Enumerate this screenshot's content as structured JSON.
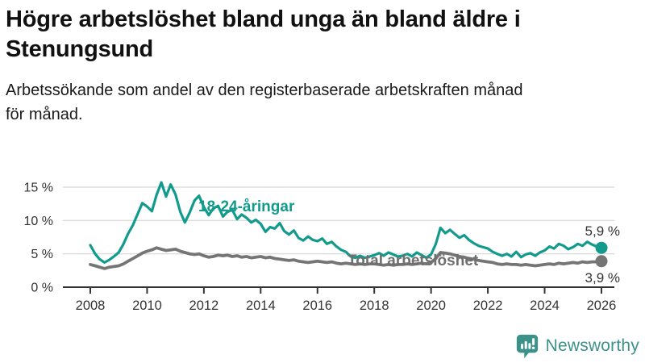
{
  "header": {
    "title_line1": "Högre arbetslöshet bland unga än bland äldre i",
    "title_line2": "Stenungsund",
    "subtitle_line1": "Arbetssökande som andel av den registerbaserade arbetskraften månad",
    "subtitle_line2": "för månad."
  },
  "annotations": {
    "youth_series_label": "18-24-åringar",
    "total_series_label": "Total arbetslöshet",
    "youth_end_label": "5,9 %",
    "total_end_label": "3,9 %"
  },
  "footer": {
    "brand": "Newsworthy",
    "logo_icon": "bar-chart-speech-bubble-icon"
  },
  "colors": {
    "youth": "#129a8d",
    "total": "#757575",
    "axis": "#333333",
    "tick_text": "#333333",
    "grid": "#dddddd",
    "brand": "#3d918b"
  },
  "chart_data": {
    "type": "line",
    "title": "Högre arbetslöshet bland unga än bland äldre i Stenungsund",
    "subtitle": "Arbetssökande som andel av den registerbaserade arbetskraften månad för månad.",
    "unit": "%",
    "grid": true,
    "xlim": [
      2007.0,
      2026.5
    ],
    "ylim": [
      0,
      16.5
    ],
    "x_tick_years": [
      2008,
      2010,
      2012,
      2014,
      2016,
      2018,
      2020,
      2022,
      2024,
      2026
    ],
    "x_ticks": [
      "2008",
      "2010",
      "2012",
      "2014",
      "2016",
      "2018",
      "2020",
      "2022",
      "2024",
      "2026"
    ],
    "y_ticks": [
      {
        "value": 0,
        "label": "0 %"
      },
      {
        "value": 5,
        "label": "5 %"
      },
      {
        "value": 10,
        "label": "10 %"
      },
      {
        "value": 15,
        "label": "15 %"
      }
    ],
    "series": [
      {
        "name": "Total arbetslöshet",
        "color_key": "total",
        "stroke_width": 3.8,
        "last_value_label": "3,9 %",
        "points": [
          [
            2008.0,
            3.4
          ],
          [
            2008.17,
            3.2
          ],
          [
            2008.33,
            3.0
          ],
          [
            2008.5,
            2.8
          ],
          [
            2008.67,
            3.0
          ],
          [
            2008.83,
            3.1
          ],
          [
            2009.0,
            3.2
          ],
          [
            2009.17,
            3.5
          ],
          [
            2009.33,
            3.9
          ],
          [
            2009.5,
            4.3
          ],
          [
            2009.67,
            4.7
          ],
          [
            2009.83,
            5.1
          ],
          [
            2010.0,
            5.4
          ],
          [
            2010.17,
            5.6
          ],
          [
            2010.33,
            5.9
          ],
          [
            2010.5,
            5.7
          ],
          [
            2010.67,
            5.5
          ],
          [
            2010.83,
            5.6
          ],
          [
            2011.0,
            5.7
          ],
          [
            2011.17,
            5.4
          ],
          [
            2011.33,
            5.2
          ],
          [
            2011.5,
            5.0
          ],
          [
            2011.67,
            4.9
          ],
          [
            2011.83,
            5.0
          ],
          [
            2012.0,
            4.7
          ],
          [
            2012.17,
            4.5
          ],
          [
            2012.33,
            4.6
          ],
          [
            2012.5,
            4.8
          ],
          [
            2012.67,
            4.7
          ],
          [
            2012.83,
            4.8
          ],
          [
            2013.0,
            4.6
          ],
          [
            2013.17,
            4.7
          ],
          [
            2013.33,
            4.5
          ],
          [
            2013.5,
            4.6
          ],
          [
            2013.67,
            4.4
          ],
          [
            2013.83,
            4.5
          ],
          [
            2014.0,
            4.6
          ],
          [
            2014.17,
            4.4
          ],
          [
            2014.33,
            4.5
          ],
          [
            2014.5,
            4.3
          ],
          [
            2014.67,
            4.2
          ],
          [
            2014.83,
            4.1
          ],
          [
            2015.0,
            4.0
          ],
          [
            2015.17,
            4.1
          ],
          [
            2015.33,
            3.9
          ],
          [
            2015.5,
            3.8
          ],
          [
            2015.67,
            3.7
          ],
          [
            2015.83,
            3.8
          ],
          [
            2016.0,
            3.9
          ],
          [
            2016.17,
            3.8
          ],
          [
            2016.33,
            3.7
          ],
          [
            2016.5,
            3.8
          ],
          [
            2016.67,
            3.6
          ],
          [
            2016.83,
            3.5
          ],
          [
            2017.0,
            3.6
          ],
          [
            2017.17,
            3.5
          ],
          [
            2017.33,
            3.4
          ],
          [
            2017.5,
            3.5
          ],
          [
            2017.67,
            3.4
          ],
          [
            2017.83,
            3.5
          ],
          [
            2018.0,
            3.5
          ],
          [
            2018.17,
            3.4
          ],
          [
            2018.33,
            3.3
          ],
          [
            2018.5,
            3.4
          ],
          [
            2018.67,
            3.3
          ],
          [
            2018.83,
            3.4
          ],
          [
            2019.0,
            3.4
          ],
          [
            2019.17,
            3.5
          ],
          [
            2019.33,
            3.4
          ],
          [
            2019.5,
            3.5
          ],
          [
            2019.67,
            3.6
          ],
          [
            2019.83,
            3.5
          ],
          [
            2020.0,
            3.7
          ],
          [
            2020.17,
            4.3
          ],
          [
            2020.33,
            5.2
          ],
          [
            2020.5,
            5.1
          ],
          [
            2020.67,
            5.0
          ],
          [
            2020.83,
            4.8
          ],
          [
            2021.0,
            4.6
          ],
          [
            2021.17,
            4.5
          ],
          [
            2021.33,
            4.3
          ],
          [
            2021.5,
            4.2
          ],
          [
            2021.67,
            4.0
          ],
          [
            2021.83,
            3.9
          ],
          [
            2022.0,
            3.8
          ],
          [
            2022.17,
            3.7
          ],
          [
            2022.33,
            3.5
          ],
          [
            2022.5,
            3.4
          ],
          [
            2022.67,
            3.5
          ],
          [
            2022.83,
            3.4
          ],
          [
            2023.0,
            3.4
          ],
          [
            2023.17,
            3.3
          ],
          [
            2023.33,
            3.4
          ],
          [
            2023.5,
            3.3
          ],
          [
            2023.67,
            3.2
          ],
          [
            2023.83,
            3.3
          ],
          [
            2024.0,
            3.4
          ],
          [
            2024.17,
            3.5
          ],
          [
            2024.33,
            3.4
          ],
          [
            2024.5,
            3.6
          ],
          [
            2024.67,
            3.5
          ],
          [
            2024.83,
            3.6
          ],
          [
            2025.0,
            3.7
          ],
          [
            2025.17,
            3.6
          ],
          [
            2025.33,
            3.8
          ],
          [
            2025.5,
            3.7
          ],
          [
            2025.67,
            3.8
          ],
          [
            2025.83,
            3.8
          ],
          [
            2026.0,
            3.9
          ]
        ]
      },
      {
        "name": "18-24-åringar",
        "color_key": "youth",
        "stroke_width": 3.2,
        "last_value_label": "5,9 %",
        "points": [
          [
            2008.0,
            6.3
          ],
          [
            2008.17,
            5.0
          ],
          [
            2008.33,
            4.2
          ],
          [
            2008.5,
            3.7
          ],
          [
            2008.67,
            4.1
          ],
          [
            2008.83,
            4.6
          ],
          [
            2009.0,
            5.2
          ],
          [
            2009.17,
            6.5
          ],
          [
            2009.33,
            8.0
          ],
          [
            2009.5,
            9.3
          ],
          [
            2009.67,
            11.0
          ],
          [
            2009.83,
            12.6
          ],
          [
            2010.0,
            12.1
          ],
          [
            2010.17,
            11.4
          ],
          [
            2010.33,
            13.8
          ],
          [
            2010.5,
            15.7
          ],
          [
            2010.67,
            13.6
          ],
          [
            2010.83,
            15.4
          ],
          [
            2011.0,
            13.9
          ],
          [
            2011.17,
            11.3
          ],
          [
            2011.33,
            9.7
          ],
          [
            2011.5,
            11.2
          ],
          [
            2011.67,
            13.0
          ],
          [
            2011.83,
            13.7
          ],
          [
            2012.0,
            12.0
          ],
          [
            2012.17,
            10.8
          ],
          [
            2012.33,
            11.8
          ],
          [
            2012.5,
            12.2
          ],
          [
            2012.67,
            10.6
          ],
          [
            2012.83,
            11.3
          ],
          [
            2013.0,
            11.6
          ],
          [
            2013.17,
            10.2
          ],
          [
            2013.33,
            10.9
          ],
          [
            2013.5,
            10.4
          ],
          [
            2013.67,
            9.7
          ],
          [
            2013.83,
            10.1
          ],
          [
            2014.0,
            9.5
          ],
          [
            2014.17,
            8.3
          ],
          [
            2014.33,
            9.0
          ],
          [
            2014.5,
            8.8
          ],
          [
            2014.67,
            9.6
          ],
          [
            2014.83,
            8.4
          ],
          [
            2015.0,
            7.9
          ],
          [
            2015.17,
            8.5
          ],
          [
            2015.33,
            7.4
          ],
          [
            2015.5,
            7.0
          ],
          [
            2015.67,
            7.6
          ],
          [
            2015.83,
            7.1
          ],
          [
            2016.0,
            6.9
          ],
          [
            2016.17,
            7.3
          ],
          [
            2016.33,
            6.5
          ],
          [
            2016.5,
            6.8
          ],
          [
            2016.67,
            6.1
          ],
          [
            2016.83,
            5.6
          ],
          [
            2017.0,
            5.3
          ],
          [
            2017.17,
            4.6
          ],
          [
            2017.33,
            4.4
          ],
          [
            2017.5,
            4.7
          ],
          [
            2017.67,
            4.4
          ],
          [
            2017.83,
            4.6
          ],
          [
            2018.0,
            4.8
          ],
          [
            2018.17,
            5.1
          ],
          [
            2018.33,
            4.7
          ],
          [
            2018.5,
            5.2
          ],
          [
            2018.67,
            4.9
          ],
          [
            2018.83,
            4.6
          ],
          [
            2019.0,
            4.7
          ],
          [
            2019.17,
            5.0
          ],
          [
            2019.33,
            4.6
          ],
          [
            2019.5,
            5.2
          ],
          [
            2019.67,
            4.8
          ],
          [
            2019.83,
            4.4
          ],
          [
            2020.0,
            4.9
          ],
          [
            2020.17,
            6.5
          ],
          [
            2020.33,
            8.9
          ],
          [
            2020.5,
            8.1
          ],
          [
            2020.67,
            8.6
          ],
          [
            2020.83,
            8.0
          ],
          [
            2021.0,
            7.4
          ],
          [
            2021.17,
            7.8
          ],
          [
            2021.33,
            7.1
          ],
          [
            2021.5,
            6.6
          ],
          [
            2021.67,
            6.2
          ],
          [
            2021.83,
            6.0
          ],
          [
            2022.0,
            5.8
          ],
          [
            2022.17,
            5.3
          ],
          [
            2022.33,
            5.0
          ],
          [
            2022.5,
            4.7
          ],
          [
            2022.67,
            5.0
          ],
          [
            2022.83,
            4.6
          ],
          [
            2023.0,
            5.3
          ],
          [
            2023.17,
            4.5
          ],
          [
            2023.33,
            4.9
          ],
          [
            2023.5,
            5.1
          ],
          [
            2023.67,
            4.7
          ],
          [
            2023.83,
            5.2
          ],
          [
            2024.0,
            5.5
          ],
          [
            2024.17,
            6.1
          ],
          [
            2024.33,
            5.8
          ],
          [
            2024.5,
            6.5
          ],
          [
            2024.67,
            6.2
          ],
          [
            2024.83,
            5.7
          ],
          [
            2025.0,
            6.0
          ],
          [
            2025.17,
            6.5
          ],
          [
            2025.33,
            6.2
          ],
          [
            2025.5,
            6.8
          ],
          [
            2025.67,
            6.4
          ],
          [
            2025.83,
            6.1
          ],
          [
            2026.0,
            5.9
          ]
        ]
      }
    ],
    "legend_position": "inline-labels"
  }
}
